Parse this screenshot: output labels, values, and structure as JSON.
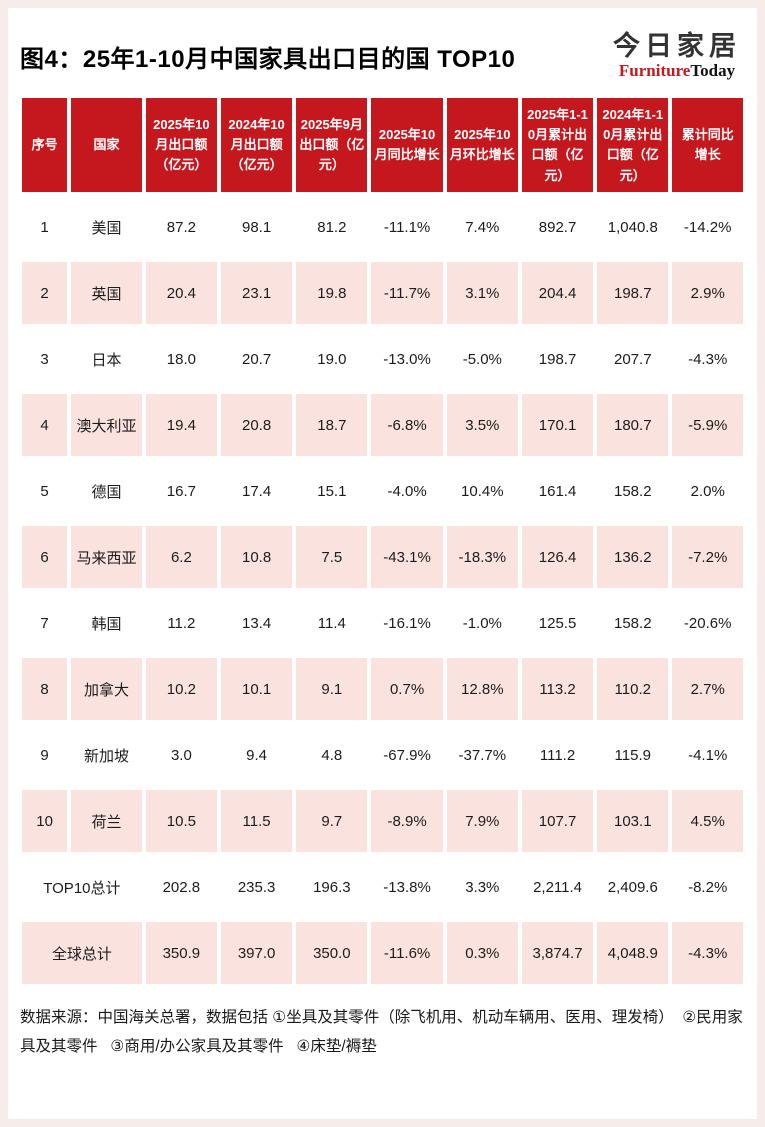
{
  "page": {
    "title": "图4：25年1-10月中国家具出口目的国 TOP10"
  },
  "logo": {
    "cn": "今日家居",
    "en_red": "Furniture",
    "en_black": "Today"
  },
  "colors": {
    "header_bg": "#c4181e",
    "row_alt_bg": "#fae3de",
    "logo_red": "#c4181e",
    "page_border": "#f6ecea"
  },
  "chart_data": {
    "type": "table",
    "title": "图4：25年1-10月中国家具出口目的国 TOP10",
    "columns": [
      "序号",
      "国家",
      "2025年10月出口额（亿元）",
      "2024年10月出口额（亿元）",
      "2025年9月出口额（亿元）",
      "2025年10月同比增长",
      "2025年10月环比增长",
      "2025年1-10月累计出口额（亿元）",
      "2024年1-10月累计出口额（亿元）",
      "累计同比增长"
    ],
    "rows": [
      [
        "1",
        "美国",
        "87.2",
        "98.1",
        "81.2",
        "-11.1%",
        "7.4%",
        "892.7",
        "1,040.8",
        "-14.2%"
      ],
      [
        "2",
        "英国",
        "20.4",
        "23.1",
        "19.8",
        "-11.7%",
        "3.1%",
        "204.4",
        "198.7",
        "2.9%"
      ],
      [
        "3",
        "日本",
        "18.0",
        "20.7",
        "19.0",
        "-13.0%",
        "-5.0%",
        "198.7",
        "207.7",
        "-4.3%"
      ],
      [
        "4",
        "澳大利亚",
        "19.4",
        "20.8",
        "18.7",
        "-6.8%",
        "3.5%",
        "170.1",
        "180.7",
        "-5.9%"
      ],
      [
        "5",
        "德国",
        "16.7",
        "17.4",
        "15.1",
        "-4.0%",
        "10.4%",
        "161.4",
        "158.2",
        "2.0%"
      ],
      [
        "6",
        "马来西亚",
        "6.2",
        "10.8",
        "7.5",
        "-43.1%",
        "-18.3%",
        "126.4",
        "136.2",
        "-7.2%"
      ],
      [
        "7",
        "韩国",
        "11.2",
        "13.4",
        "11.4",
        "-16.1%",
        "-1.0%",
        "125.5",
        "158.2",
        "-20.6%"
      ],
      [
        "8",
        "加拿大",
        "10.2",
        "10.1",
        "9.1",
        "0.7%",
        "12.8%",
        "113.2",
        "110.2",
        "2.7%"
      ],
      [
        "9",
        "新加坡",
        "3.0",
        "9.4",
        "4.8",
        "-67.9%",
        "-37.7%",
        "111.2",
        "115.9",
        "-4.1%"
      ],
      [
        "10",
        "荷兰",
        "10.5",
        "11.5",
        "9.7",
        "-8.9%",
        "7.9%",
        "107.7",
        "103.1",
        "4.5%"
      ]
    ],
    "total_rows": [
      [
        "TOP10总计",
        "202.8",
        "235.3",
        "196.3",
        "-13.8%",
        "3.3%",
        "2,211.4",
        "2,409.6",
        "-8.2%"
      ],
      [
        "全球总计",
        "350.9",
        "397.0",
        "350.0",
        "-11.6%",
        "0.3%",
        "3,874.7",
        "4,048.9",
        "-4.3%"
      ]
    ]
  },
  "footer": {
    "text": "数据来源：中国海关总署，数据包括 ①坐具及其零件（除飞机用、机动车辆用、医用、理发椅）  ②民用家具及其零件   ③商用/办公家具及其零件   ④床垫/褥垫"
  }
}
